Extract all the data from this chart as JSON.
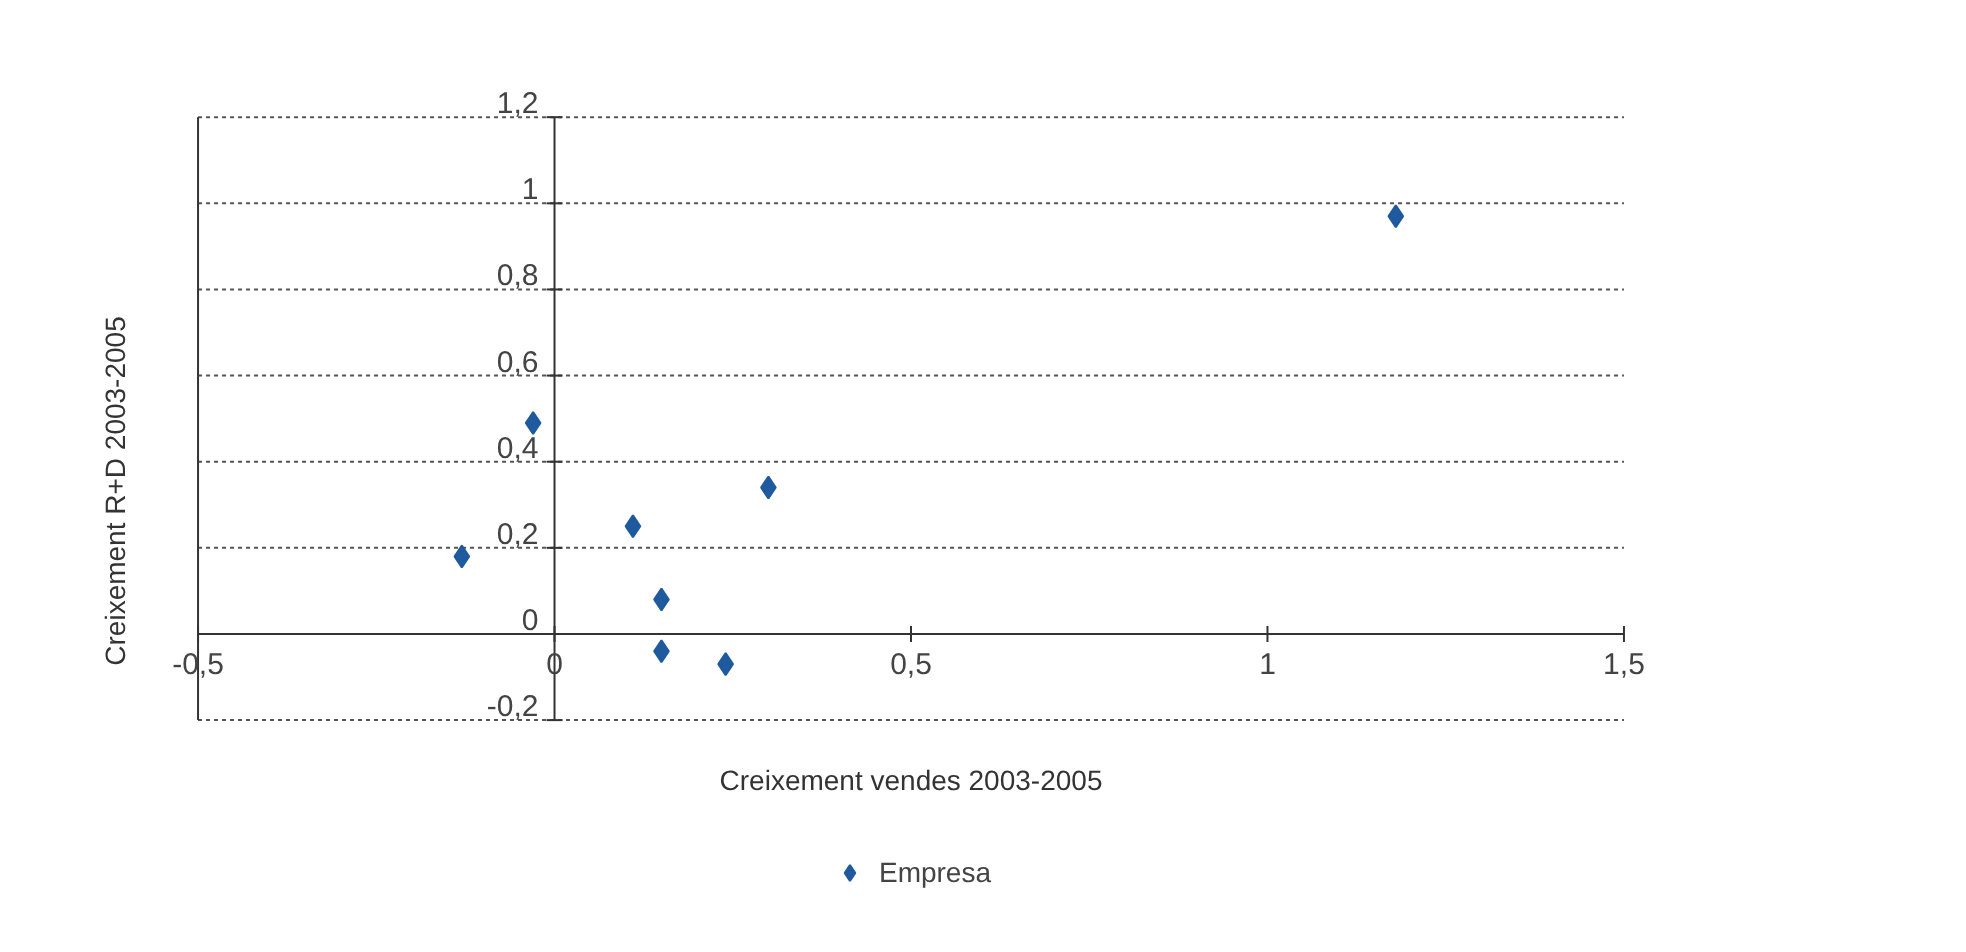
{
  "chart_data": {
    "type": "scatter",
    "xlabel": "Creixement vendes 2003-2005",
    "ylabel": "Creixement R+D 2003-2005",
    "series": [
      {
        "name": "Empresa",
        "color": "#1f5a9e",
        "x": [
          1.18,
          -0.03,
          0.3,
          0.11,
          -0.13,
          0.15,
          0.15,
          0.24
        ],
        "values": [
          0.97,
          0.49,
          0.34,
          0.25,
          0.18,
          0.08,
          -0.04,
          -0.07
        ]
      }
    ],
    "marker": "diamond",
    "xlim": [
      -0.5,
      1.5
    ],
    "ylim": [
      -0.2,
      1.2
    ],
    "xticks": [
      {
        "value": -0.5,
        "label": "-0,5"
      },
      0,
      {
        "value": 0.5,
        "label": "0,5"
      },
      1,
      {
        "value": 1.5,
        "label": "1,5"
      }
    ],
    "yticks": [
      {
        "value": -0.2,
        "label": "-0,2"
      },
      0,
      {
        "value": 0.2,
        "label": "0,2"
      },
      {
        "value": 0.4,
        "label": "0,4"
      },
      {
        "value": 0.6,
        "label": "0,6"
      },
      {
        "value": 0.8,
        "label": "0,8"
      },
      1,
      {
        "value": 1.2,
        "label": "1,2"
      }
    ],
    "grid": "y",
    "legend": "bottom"
  }
}
